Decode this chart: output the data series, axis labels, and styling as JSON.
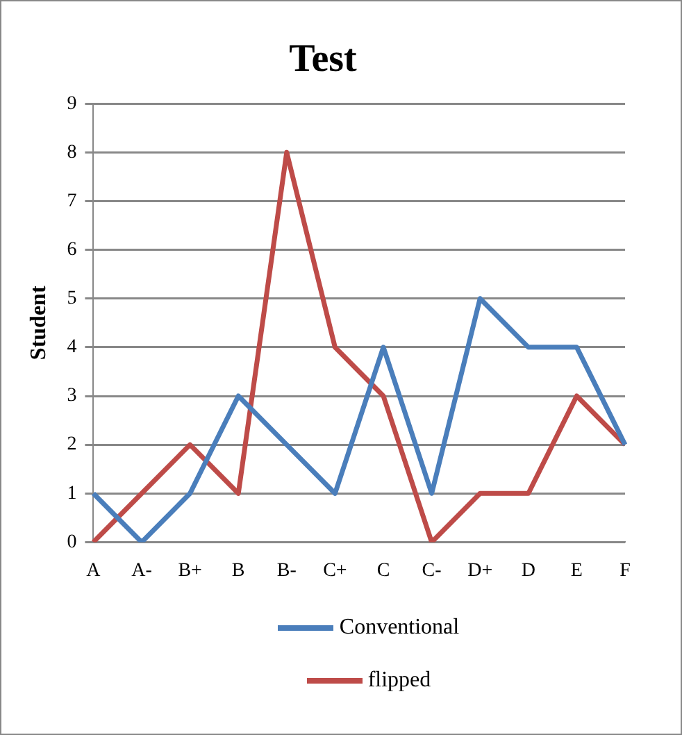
{
  "chart_data": {
    "type": "line",
    "title": "Test",
    "ylabel": "Student",
    "categories": [
      "A",
      "A-",
      "B+",
      "B",
      "B-",
      "C+",
      "C",
      "C-",
      "D+",
      "D",
      "E",
      "F"
    ],
    "series": [
      {
        "name": "Conventional",
        "color": "#4a7ebb",
        "values": [
          1,
          0,
          1,
          3,
          2,
          1,
          4,
          1,
          5,
          4,
          4,
          2
        ]
      },
      {
        "name": "flipped",
        "color": "#be4b48",
        "values": [
          0,
          1,
          2,
          1,
          8,
          4,
          3,
          0,
          1,
          1,
          3,
          2
        ]
      }
    ],
    "ylim": [
      0,
      9
    ],
    "yticks": [
      0,
      1,
      2,
      3,
      4,
      5,
      6,
      7,
      8,
      9
    ],
    "grid": "y",
    "legend": "bottom",
    "marker": "none",
    "line_style": "solid"
  }
}
